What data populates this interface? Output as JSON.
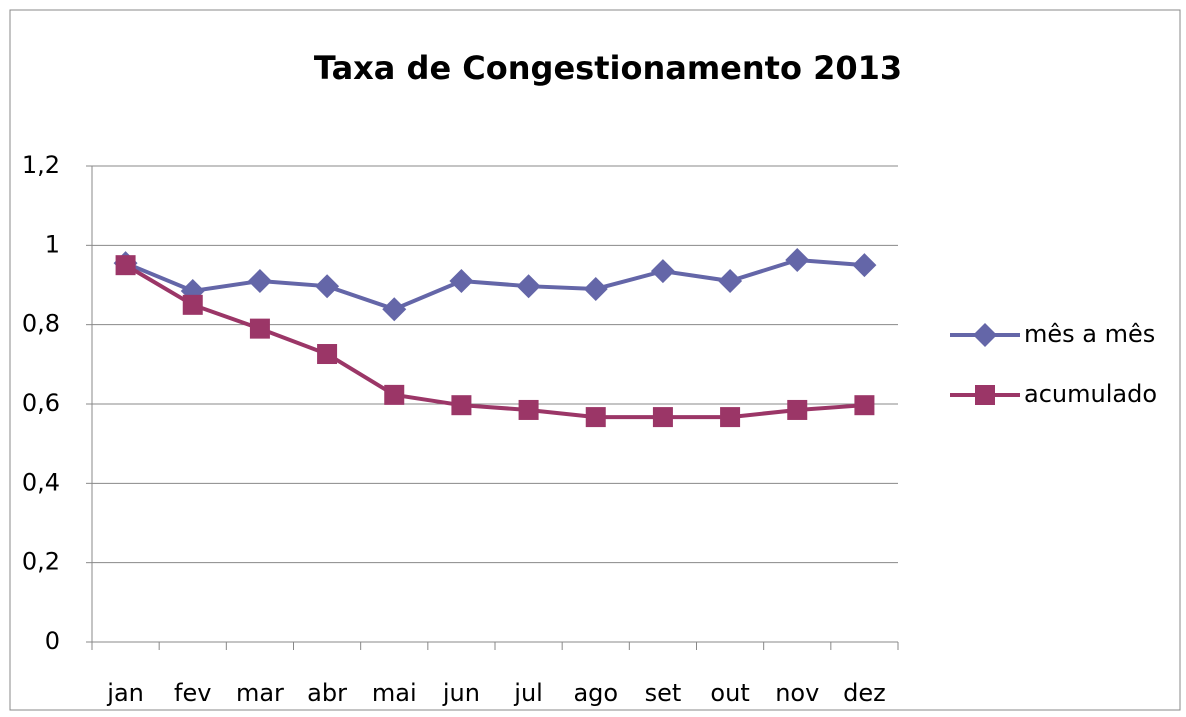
{
  "chart_data": {
    "type": "line",
    "title": "Taxa de Congestionamento 2013",
    "categories": [
      "jan",
      "fev",
      "mar",
      "abr",
      "mai",
      "jun",
      "jul",
      "ago",
      "set",
      "out",
      "nov",
      "dez"
    ],
    "series": [
      {
        "name": "mês a mês",
        "color": "#6466a8",
        "marker": "diamond",
        "values": [
          0.955,
          0.885,
          0.91,
          0.897,
          0.839,
          0.91,
          0.897,
          0.89,
          0.935,
          0.91,
          0.963,
          0.95
        ]
      },
      {
        "name": "acumulado",
        "color": "#9b3667",
        "marker": "square",
        "values": [
          0.95,
          0.85,
          0.79,
          0.726,
          0.623,
          0.597,
          0.585,
          0.567,
          0.567,
          0.567,
          0.585,
          0.597
        ]
      }
    ],
    "ylim": [
      0,
      1.2
    ],
    "yticks": [
      0,
      {
        "value": 0.2,
        "label": "0,2"
      },
      {
        "value": 0.4,
        "label": "0,4"
      },
      {
        "value": 0.6,
        "label": "0,6"
      },
      {
        "value": 0.8,
        "label": "0,8"
      },
      1,
      {
        "value": 1.2,
        "label": "1,2"
      }
    ],
    "grid": true,
    "legend": "right"
  }
}
